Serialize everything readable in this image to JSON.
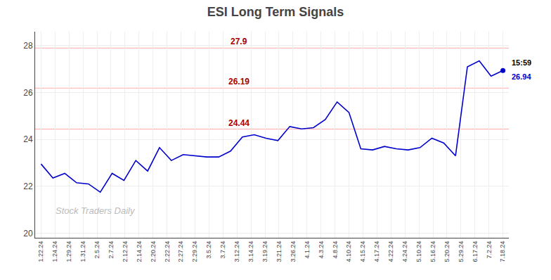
{
  "chart_data": {
    "type": "line",
    "title": "ESI Long Term Signals",
    "x": [
      0,
      1,
      2,
      3,
      4,
      5,
      6,
      7,
      8,
      9,
      10,
      11,
      12,
      13,
      14,
      15,
      16,
      17,
      18,
      19,
      20,
      21,
      22,
      23,
      24,
      25,
      26,
      27,
      28,
      29,
      30,
      31,
      32,
      33,
      34,
      35,
      36,
      37,
      38,
      39
    ],
    "values": [
      22.95,
      22.35,
      22.55,
      22.15,
      22.1,
      21.75,
      22.55,
      22.25,
      23.1,
      22.65,
      23.65,
      23.1,
      23.35,
      23.3,
      23.25,
      23.25,
      23.5,
      24.1,
      24.2,
      24.05,
      23.95,
      24.55,
      24.45,
      24.5,
      24.85,
      25.6,
      25.15,
      23.6,
      23.55,
      23.7,
      23.6,
      23.55,
      23.65,
      24.05,
      23.85,
      23.3,
      27.1,
      27.35,
      26.7,
      26.94
    ],
    "color": "#0000cc",
    "xlim": [
      -0.5,
      39.5
    ],
    "xticks": [
      {
        "value": 0,
        "label": "1.22.24"
      },
      {
        "value": 1.1818181818181819,
        "label": "1.24.24"
      },
      {
        "value": 2.3636363636363638,
        "label": "1.29.24"
      },
      {
        "value": 3.5454545454545454,
        "label": "1.31.24"
      },
      {
        "value": 4.7272727272727275,
        "label": "2.5.24"
      },
      {
        "value": 5.909090909090909,
        "label": "2.7.24"
      },
      {
        "value": 7.090909090909091,
        "label": "2.12.24"
      },
      {
        "value": 8.272727272727273,
        "label": "2.14.24"
      },
      {
        "value": 9.454545454545455,
        "label": "2.20.24"
      },
      {
        "value": 10.636363636363637,
        "label": "2.22.24"
      },
      {
        "value": 11.818181818181818,
        "label": "2.27.24"
      },
      {
        "value": 13,
        "label": "2.29.24"
      },
      {
        "value": 14.181818181818182,
        "label": "3.5.24"
      },
      {
        "value": 15.363636363636363,
        "label": "3.7.24"
      },
      {
        "value": 16.545454545454547,
        "label": "3.12.24"
      },
      {
        "value": 17.727272727272727,
        "label": "3.14.24"
      },
      {
        "value": 18.90909090909091,
        "label": "3.19.24"
      },
      {
        "value": 20.09090909090909,
        "label": "3.21.24"
      },
      {
        "value": 21.272727272727273,
        "label": "3.26.24"
      },
      {
        "value": 22.454545454545453,
        "label": "4.1.24"
      },
      {
        "value": 23.636363636363637,
        "label": "4.3.24"
      },
      {
        "value": 24.818181818181817,
        "label": "4.8.24"
      },
      {
        "value": 26,
        "label": "4.10.24"
      },
      {
        "value": 27.181818181818183,
        "label": "4.15.24"
      },
      {
        "value": 28.363636363636363,
        "label": "4.17.24"
      },
      {
        "value": 29.545454545454547,
        "label": "4.22.24"
      },
      {
        "value": 30.727272727272727,
        "label": "4.24.24"
      },
      {
        "value": 31.90909090909091,
        "label": "5.10.24"
      },
      {
        "value": 33.09090909090909,
        "label": "5.16.24"
      },
      {
        "value": 34.27272727272727,
        "label": "5.20.24"
      },
      {
        "value": 35.45454545454545,
        "label": "5.29.24"
      },
      {
        "value": 36.63636363636363,
        "label": "6.17.24"
      },
      {
        "value": 37.81818181818182,
        "label": "7.2.24"
      },
      {
        "value": 39,
        "label": "7.18.24"
      }
    ],
    "ylim": [
      19.8,
      28.6
    ],
    "yticks": [
      20,
      22,
      24,
      26,
      28
    ],
    "grid": true,
    "hlines": {
      "values": [
        27.9,
        26.19,
        24.44
      ],
      "color": "#ffaaaa",
      "label_color": "#aa0000"
    },
    "annotations": [
      {
        "text": "15:59",
        "x": 39,
        "y": 26.94,
        "color": "black"
      },
      {
        "text": "26.94",
        "x": 39,
        "y": 26.94,
        "color": "#0000cc"
      }
    ],
    "watermark": {
      "text": "Stock Traders Daily",
      "color": "#bbbbbb"
    }
  }
}
